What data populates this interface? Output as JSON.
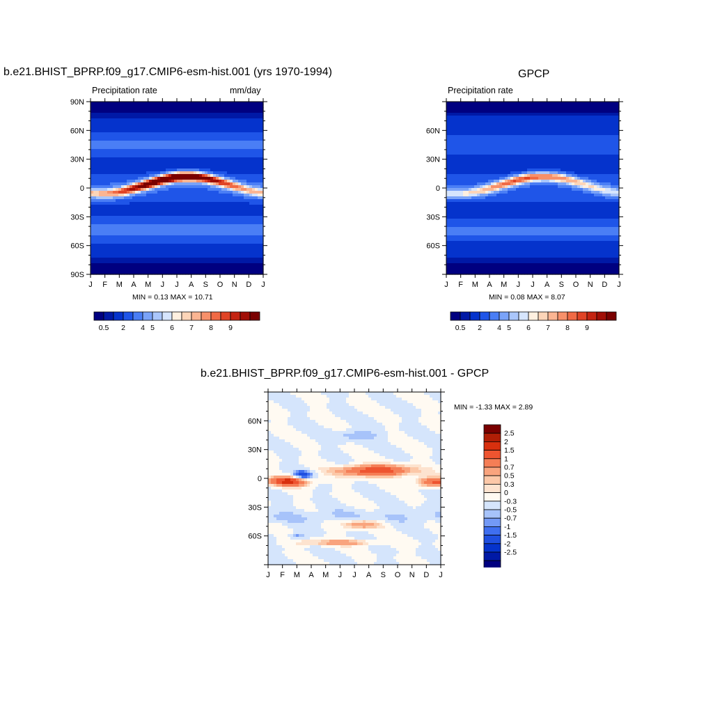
{
  "colors": {
    "abs_scale": [
      "#000080",
      "#0019a6",
      "#0533cc",
      "#1f55e8",
      "#4a7ef5",
      "#7aa3f8",
      "#aac6fb",
      "#d6e5fd",
      "#fff0e0",
      "#fdd5b8",
      "#fbb592",
      "#f7906a",
      "#f06a45",
      "#e04426",
      "#c42412",
      "#a10e06",
      "#7a0000"
    ],
    "diff_scale": [
      "#000080",
      "#0019a6",
      "#0533cc",
      "#1f4fe0",
      "#3f6ff0",
      "#7399f6",
      "#a7c3fa",
      "#d5e5fc",
      "#fffaf2",
      "#fde3cf",
      "#fcc8a8",
      "#f9a47e",
      "#f57e56",
      "#ee5430",
      "#d8300e",
      "#b01e06",
      "#7a0000"
    ]
  },
  "chart_data": [
    {
      "id": "model",
      "type": "heatmap",
      "title": "b.e21.BHIST_BPRP.f09_g17.CMIP6-esm-hist.001 (yrs 1970-1994)",
      "left_label": "Precipitation rate",
      "right_label": "mm/day",
      "x_ticks": [
        "J",
        "F",
        "M",
        "A",
        "M",
        "J",
        "J",
        "A",
        "S",
        "O",
        "N",
        "D",
        "J"
      ],
      "y_ticks": [
        "90N",
        "60N",
        "30N",
        "0",
        "30S",
        "60S",
        "90S"
      ],
      "y_tick_values": [
        90,
        60,
        30,
        0,
        -30,
        -60,
        -90
      ],
      "ylim": [
        -90,
        90
      ],
      "min_max": "MIN =   0.13 MAX =  10.71",
      "min": 0.13,
      "max": 10.71,
      "colorbar_labels": [
        "0.5",
        "2",
        "4",
        "5",
        "6",
        "7",
        "8",
        "9"
      ],
      "colorbar_levels": [
        0.5,
        1,
        2,
        3,
        4,
        5,
        5.5,
        6,
        6.5,
        7,
        7.5,
        8,
        8.5,
        9,
        9.5,
        10
      ]
    },
    {
      "id": "obs",
      "type": "heatmap",
      "title": "GPCP",
      "left_label": "Precipitation rate",
      "right_label": "",
      "x_ticks": [
        "J",
        "F",
        "M",
        "A",
        "M",
        "J",
        "J",
        "A",
        "S",
        "O",
        "N",
        "D",
        "J"
      ],
      "y_ticks": [
        "60N",
        "30N",
        "0",
        "30S",
        "60S"
      ],
      "y_tick_values": [
        60,
        30,
        0,
        -30,
        -60
      ],
      "ylim": [
        -90,
        90
      ],
      "min_max": "MIN =   0.08 MAX =   8.07",
      "min": 0.08,
      "max": 8.07,
      "colorbar_labels": [
        "0.5",
        "2",
        "4",
        "5",
        "6",
        "7",
        "8",
        "9"
      ],
      "colorbar_levels": [
        0.5,
        1,
        2,
        3,
        4,
        5,
        5.5,
        6,
        6.5,
        7,
        7.5,
        8,
        8.5,
        9,
        9.5,
        10
      ]
    },
    {
      "id": "diff",
      "type": "heatmap",
      "title": "b.e21.BHIST_BPRP.f09_g17.CMIP6-esm-hist.001 - GPCP",
      "left_label": "",
      "right_label": "",
      "x_ticks": [
        "J",
        "F",
        "M",
        "A",
        "M",
        "J",
        "J",
        "A",
        "S",
        "O",
        "N",
        "D",
        "J"
      ],
      "y_ticks": [
        "60N",
        "30N",
        "0",
        "30S",
        "60S"
      ],
      "y_tick_values": [
        60,
        30,
        0,
        -30,
        -60
      ],
      "ylim": [
        -90,
        90
      ],
      "min_max": "MIN =  -1.33 MAX =   2.89",
      "min": -1.33,
      "max": 2.89,
      "colorbar_labels": [
        "2.5",
        "2",
        "1.5",
        "1",
        "0.7",
        "0.5",
        "0.3",
        "0",
        "-0.3",
        "-0.5",
        "-0.7",
        "-1",
        "-1.5",
        "-2",
        "-2.5"
      ],
      "colorbar_levels": [
        -2.5,
        -2,
        -1.5,
        -1,
        -0.7,
        -0.5,
        -0.3,
        0,
        0.3,
        0.5,
        0.7,
        1,
        1.5,
        2,
        2.5
      ]
    }
  ]
}
